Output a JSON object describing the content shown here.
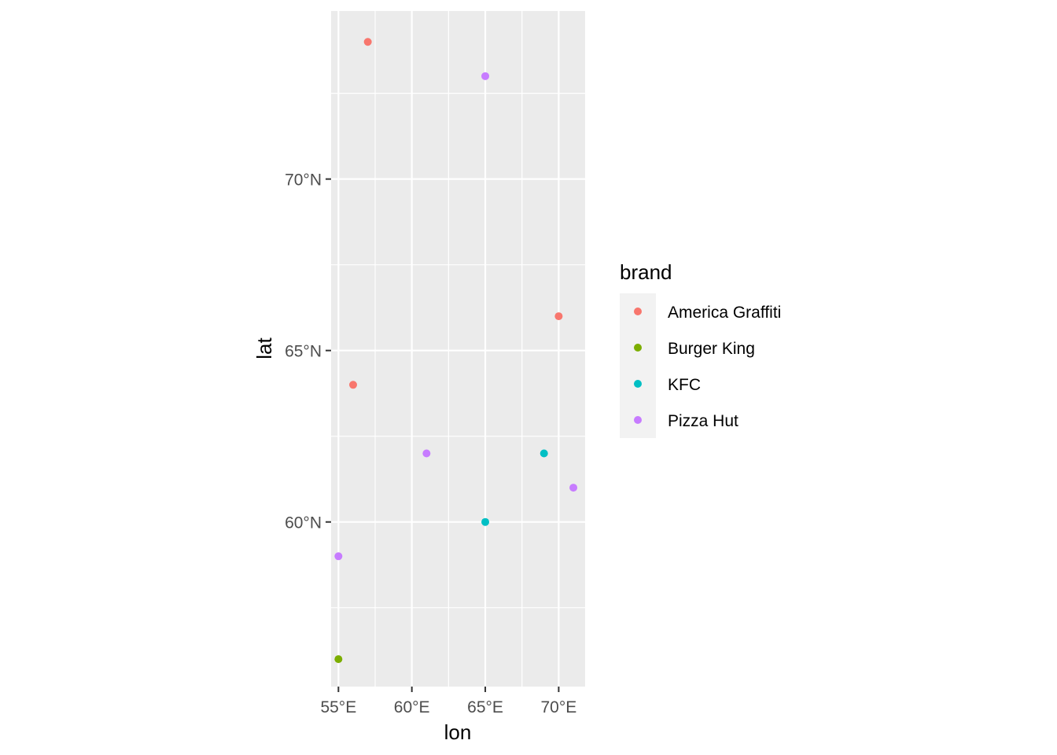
{
  "chart_data": {
    "type": "scatter",
    "title": "",
    "xlabel": "lon",
    "ylabel": "lat",
    "xlim": [
      54.5,
      71.8
    ],
    "ylim": [
      55.2,
      74.9
    ],
    "grid": true,
    "x_ticks": [
      {
        "value": 55,
        "label": "55°E"
      },
      {
        "value": 60,
        "label": "60°E"
      },
      {
        "value": 65,
        "label": "65°E"
      },
      {
        "value": 70,
        "label": "70°E"
      }
    ],
    "y_ticks": [
      {
        "value": 60,
        "label": "60°N"
      },
      {
        "value": 65,
        "label": "65°N"
      },
      {
        "value": 70,
        "label": "70°N"
      }
    ],
    "legend": {
      "title": "brand",
      "placement": "right",
      "entries": [
        {
          "name": "America Graffiti",
          "color": "#F8766D"
        },
        {
          "name": "Burger King",
          "color": "#7CAE00"
        },
        {
          "name": "KFC",
          "color": "#00BFC4"
        },
        {
          "name": "Pizza Hut",
          "color": "#C77CFF"
        }
      ]
    },
    "series": [
      {
        "name": "America Graffiti",
        "color": "#F8766D",
        "points": [
          {
            "x": 57,
            "y": 74
          },
          {
            "x": 70,
            "y": 66
          },
          {
            "x": 56,
            "y": 64
          }
        ]
      },
      {
        "name": "Burger King",
        "color": "#7CAE00",
        "points": [
          {
            "x": 55,
            "y": 56
          }
        ]
      },
      {
        "name": "KFC",
        "color": "#00BFC4",
        "points": [
          {
            "x": 69,
            "y": 62
          },
          {
            "x": 65,
            "y": 60
          }
        ]
      },
      {
        "name": "Pizza Hut",
        "color": "#C77CFF",
        "points": [
          {
            "x": 65,
            "y": 73
          },
          {
            "x": 61,
            "y": 62
          },
          {
            "x": 71,
            "y": 61
          },
          {
            "x": 55,
            "y": 59
          }
        ]
      }
    ]
  }
}
